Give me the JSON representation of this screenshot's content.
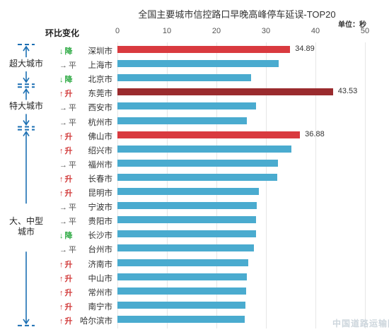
{
  "chart_data": {
    "type": "bar",
    "orientation": "horizontal",
    "title": "全国主要城市信控路口早晚高峰停车延误-TOP20",
    "unit_label": "单位：秒",
    "trend_header": "环比变化",
    "xlim": [
      0,
      50
    ],
    "xticks": [
      "0",
      "10",
      "20",
      "30",
      "40",
      "50"
    ],
    "grid": true,
    "rows": [
      {
        "city": "深圳市",
        "trend_symbol": "↓",
        "trend_text": "降",
        "trend": "down",
        "value": 34.89,
        "label": "34.89",
        "color": "#d93a3f"
      },
      {
        "city": "上海市",
        "trend_symbol": "→",
        "trend_text": "平",
        "trend": "flat",
        "value": 32.5,
        "label": "",
        "color": "#4aabcf"
      },
      {
        "city": "北京市",
        "trend_symbol": "↓",
        "trend_text": "降",
        "trend": "down",
        "value": 27.0,
        "label": "",
        "color": "#4aabcf"
      },
      {
        "city": "东莞市",
        "trend_symbol": "↑",
        "trend_text": "升",
        "trend": "up",
        "value": 43.53,
        "label": "43.53",
        "color": "#9a2b2e"
      },
      {
        "city": "西安市",
        "trend_symbol": "→",
        "trend_text": "平",
        "trend": "flat",
        "value": 28.0,
        "label": "",
        "color": "#4aabcf"
      },
      {
        "city": "杭州市",
        "trend_symbol": "→",
        "trend_text": "平",
        "trend": "flat",
        "value": 26.2,
        "label": "",
        "color": "#4aabcf"
      },
      {
        "city": "佛山市",
        "trend_symbol": "↑",
        "trend_text": "升",
        "trend": "up",
        "value": 36.88,
        "label": "36.88",
        "color": "#d93a3f"
      },
      {
        "city": "绍兴市",
        "trend_symbol": "↑",
        "trend_text": "升",
        "trend": "up",
        "value": 35.2,
        "label": "",
        "color": "#4aabcf"
      },
      {
        "city": "福州市",
        "trend_symbol": "→",
        "trend_text": "平",
        "trend": "flat",
        "value": 32.4,
        "label": "",
        "color": "#4aabcf"
      },
      {
        "city": "长春市",
        "trend_symbol": "↑",
        "trend_text": "升",
        "trend": "up",
        "value": 32.3,
        "label": "",
        "color": "#4aabcf"
      },
      {
        "city": "昆明市",
        "trend_symbol": "↑",
        "trend_text": "升",
        "trend": "up",
        "value": 28.6,
        "label": "",
        "color": "#4aabcf"
      },
      {
        "city": "宁波市",
        "trend_symbol": "→",
        "trend_text": "平",
        "trend": "flat",
        "value": 28.1,
        "label": "",
        "color": "#4aabcf"
      },
      {
        "city": "贵阳市",
        "trend_symbol": "→",
        "trend_text": "平",
        "trend": "flat",
        "value": 28.0,
        "label": "",
        "color": "#4aabcf"
      },
      {
        "city": "长沙市",
        "trend_symbol": "↓",
        "trend_text": "降",
        "trend": "down",
        "value": 28.0,
        "label": "",
        "color": "#4aabcf"
      },
      {
        "city": "台州市",
        "trend_symbol": "→",
        "trend_text": "平",
        "trend": "flat",
        "value": 27.5,
        "label": "",
        "color": "#4aabcf"
      },
      {
        "city": "济南市",
        "trend_symbol": "↑",
        "trend_text": "升",
        "trend": "up",
        "value": 26.4,
        "label": "",
        "color": "#4aabcf"
      },
      {
        "city": "中山市",
        "trend_symbol": "↑",
        "trend_text": "升",
        "trend": "up",
        "value": 26.2,
        "label": "",
        "color": "#4aabcf"
      },
      {
        "city": "常州市",
        "trend_symbol": "↑",
        "trend_text": "升",
        "trend": "up",
        "value": 26.0,
        "label": "",
        "color": "#4aabcf"
      },
      {
        "city": "南宁市",
        "trend_symbol": "↑",
        "trend_text": "升",
        "trend": "up",
        "value": 25.9,
        "label": "",
        "color": "#4aabcf"
      },
      {
        "city": "哈尔滨市",
        "trend_symbol": "↑",
        "trend_text": "升",
        "trend": "up",
        "value": 25.7,
        "label": "",
        "color": "#4aabcf"
      }
    ],
    "groups": [
      {
        "label": "超大城市",
        "rows": [
          0,
          2
        ]
      },
      {
        "label": "特大城市",
        "rows": [
          3,
          5
        ]
      },
      {
        "label": "大、中型城市",
        "rows": [
          6,
          19
        ]
      }
    ]
  },
  "watermark": "中国道路运输网"
}
